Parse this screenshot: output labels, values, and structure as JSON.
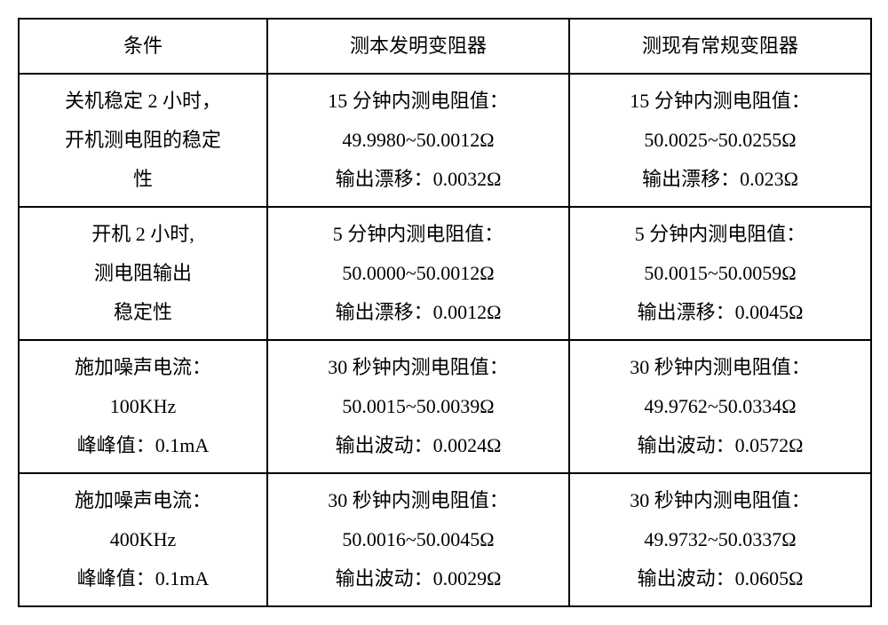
{
  "table": {
    "columns": [
      "条件",
      "测本发明变阻器",
      "测现有常规变阻器"
    ],
    "rows": [
      {
        "c1_lines": [
          "关机稳定 2 小时，",
          "开机测电阻的稳定",
          "性"
        ],
        "c2_lines": [
          "15 分钟内测电阻值：",
          "49.9980~50.0012Ω",
          "输出漂移：0.0032Ω"
        ],
        "c3_lines": [
          "15 分钟内测电阻值：",
          "50.0025~50.0255Ω",
          "输出漂移：0.023Ω"
        ]
      },
      {
        "c1_lines": [
          "开机 2 小时,",
          "测电阻输出",
          "稳定性"
        ],
        "c2_lines": [
          "5 分钟内测电阻值：",
          "50.0000~50.0012Ω",
          "输出漂移：0.0012Ω"
        ],
        "c3_lines": [
          "5 分钟内测电阻值：",
          "50.0015~50.0059Ω",
          "输出漂移：0.0045Ω"
        ]
      },
      {
        "c1_lines": [
          "施加噪声电流：",
          "100KHz",
          "峰峰值：0.1mA"
        ],
        "c2_lines": [
          "30 秒钟内测电阻值：",
          "50.0015~50.0039Ω",
          "输出波动：0.0024Ω"
        ],
        "c3_lines": [
          "30 秒钟内测电阻值：",
          "49.9762~50.0334Ω",
          "输出波动：0.0572Ω"
        ]
      },
      {
        "c1_lines": [
          "施加噪声电流：",
          "400KHz",
          "峰峰值：0.1mA"
        ],
        "c2_lines": [
          "30 秒钟内测电阻值：",
          "50.0016~50.0045Ω",
          "输出波动：0.0029Ω"
        ],
        "c3_lines": [
          "30 秒钟内测电阻值：",
          "49.9732~50.0337Ω",
          "输出波动：0.0605Ω"
        ]
      }
    ],
    "border_color": "#000000",
    "background_color": "#ffffff",
    "text_color": "#000000",
    "font_size_pt": 16
  }
}
